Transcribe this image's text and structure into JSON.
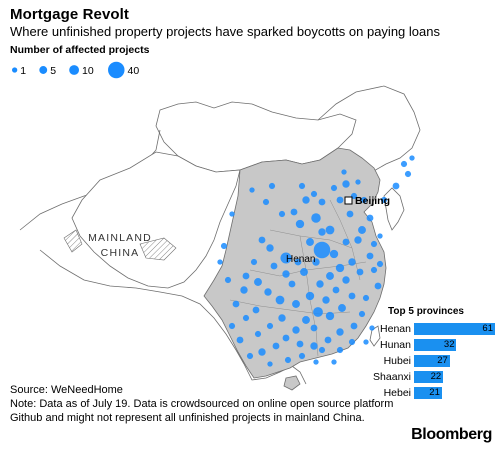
{
  "title": "Mortgage Revolt",
  "subtitle": "Where unfinished property projects have sparked boycotts on paying loans",
  "legend": {
    "title": "Number of affected projects",
    "items": [
      {
        "label": "1",
        "value": 1
      },
      {
        "label": "5",
        "value": 5
      },
      {
        "label": "10",
        "value": 10
      },
      {
        "label": "40",
        "value": 40
      }
    ],
    "color": "#1a8cff"
  },
  "map": {
    "land_color": "#c8c8c8",
    "outline_color": "#6e6e6e",
    "mainland_label_line1": "MAINLAND",
    "mainland_label_line2": "CHINA",
    "beijing_label": "Beijing",
    "henan_label": "Henan"
  },
  "bars": {
    "title": "Top 5 provinces",
    "max": 61,
    "color": "#1a90f0",
    "items": [
      {
        "name": "Henan",
        "value": 61
      },
      {
        "name": "Hunan",
        "value": 32
      },
      {
        "name": "Hubei",
        "value": 27
      },
      {
        "name": "Shaanxi",
        "value": 22
      },
      {
        "name": "Hebei",
        "value": 21
      }
    ]
  },
  "source": "Source: WeNeedHome",
  "note": "Note: Data as of July 19. Data is crowdsourced on online open source platform Github and might not represent all unfinished projects in mainland China.",
  "brand": "Bloomberg"
}
